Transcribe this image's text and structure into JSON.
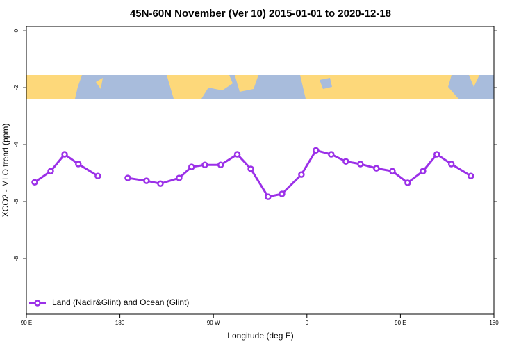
{
  "chart_data": {
    "type": "line",
    "title": "45N-60N November (Ver 10)   2015-01-01 to 2020-12-18",
    "x_label": "Longitude (deg E)",
    "y_label": "XCO2 - MLO trend (ppm)",
    "x": [
      98,
      113.4,
      126.8,
      140,
      158.8,
      null,
      187.6,
      205.6,
      219,
      237,
      249,
      261.8,
      277,
      293,
      306,
      322.6,
      336,
      354.7,
      368.7,
      383.4,
      397.5,
      411.5,
      426.9,
      442.3,
      457,
      471.7,
      485,
      499,
      517.8
    ],
    "series": [
      {
        "name": "Land (Nadir&Glint) and Ocean (Glint)",
        "color": "#9b30e8",
        "values": [
          -5.32,
          -4.93,
          -4.34,
          -4.68,
          -5.1,
          null,
          -5.17,
          -5.27,
          -5.37,
          -5.17,
          -4.78,
          -4.71,
          -4.71,
          -4.34,
          -4.85,
          -5.83,
          -5.73,
          -5.05,
          -4.2,
          -4.34,
          -4.59,
          -4.68,
          -4.83,
          -4.93,
          -5.34,
          -4.93,
          -4.34,
          -4.68,
          -5.1
        ]
      }
    ],
    "xlim": [
      90,
      540
    ],
    "xticks": [
      {
        "value": 90,
        "label": "90 E"
      },
      180,
      {
        "value": 270,
        "label": "90 W"
      },
      {
        "value": 360,
        "label": "0"
      },
      {
        "value": 450,
        "label": "90 E"
      },
      {
        "value": 540,
        "label": "180"
      }
    ],
    "ylim": [
      -9.95,
      0.15
    ],
    "yticks": [
      0,
      -2,
      -4,
      -6,
      -8
    ],
    "legend": "bottom-left"
  }
}
